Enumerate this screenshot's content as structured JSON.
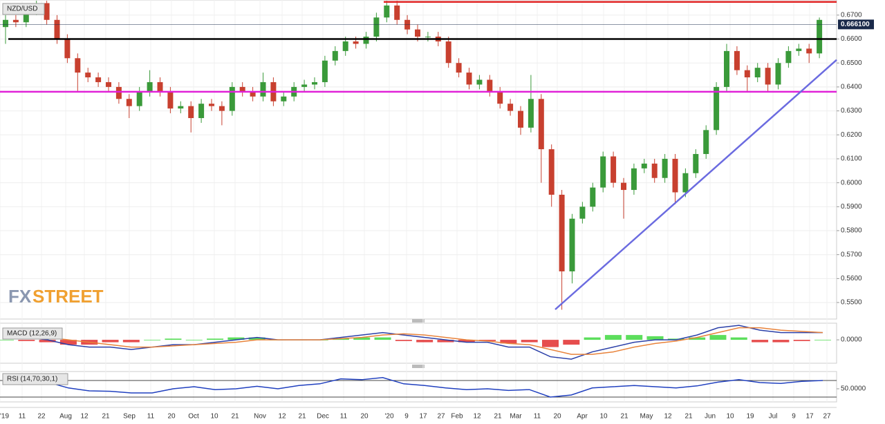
{
  "chart_data": [
    {
      "type": "candlestick",
      "title": "NZD/USD",
      "x_labels": [
        "'19",
        "11",
        "22",
        "Aug",
        "12",
        "21",
        "Sep",
        "11",
        "20",
        "Oct",
        "10",
        "21",
        "Nov",
        "12",
        "21",
        "Dec",
        "11",
        "20",
        "'20",
        "9",
        "17",
        "27",
        "Feb",
        "12",
        "21",
        "Mar",
        "11",
        "20",
        "Apr",
        "10",
        "21",
        "May",
        "12",
        "21",
        "Jun",
        "10",
        "19",
        "Jul",
        "9",
        "17",
        "27"
      ],
      "open": [
        0.665,
        0.668,
        0.667,
        0.672,
        0.675,
        0.668,
        0.66,
        0.652,
        0.646,
        0.644,
        0.642,
        0.64,
        0.635,
        0.632,
        0.638,
        0.642,
        0.638,
        0.631,
        0.632,
        0.627,
        0.633,
        0.632,
        0.63,
        0.64,
        0.638,
        0.636,
        0.642,
        0.634,
        0.636,
        0.64,
        0.641,
        0.642,
        0.651,
        0.655,
        0.659,
        0.658,
        0.661,
        0.669,
        0.674,
        0.668,
        0.664,
        0.661,
        0.661,
        0.659,
        0.65,
        0.646,
        0.641,
        0.643,
        0.638,
        0.633,
        0.63,
        0.623,
        0.635,
        0.614,
        0.595,
        0.563,
        0.585,
        0.59,
        0.598,
        0.611,
        0.6,
        0.597,
        0.606,
        0.608,
        0.602,
        0.61,
        0.596,
        0.604,
        0.612,
        0.622,
        0.64,
        0.655,
        0.647,
        0.644,
        0.648,
        0.641,
        0.65,
        0.655,
        0.656,
        0.654
      ],
      "high": [
        0.67,
        0.67,
        0.674,
        0.676,
        0.676,
        0.67,
        0.662,
        0.654,
        0.648,
        0.646,
        0.644,
        0.642,
        0.637,
        0.64,
        0.647,
        0.644,
        0.64,
        0.634,
        0.634,
        0.635,
        0.635,
        0.634,
        0.642,
        0.642,
        0.64,
        0.646,
        0.644,
        0.638,
        0.642,
        0.643,
        0.644,
        0.653,
        0.657,
        0.661,
        0.661,
        0.663,
        0.671,
        0.676,
        0.676,
        0.67,
        0.666,
        0.663,
        0.663,
        0.661,
        0.652,
        0.648,
        0.645,
        0.645,
        0.64,
        0.635,
        0.632,
        0.645,
        0.637,
        0.616,
        0.597,
        0.587,
        0.592,
        0.6,
        0.613,
        0.613,
        0.602,
        0.608,
        0.61,
        0.61,
        0.612,
        0.612,
        0.606,
        0.614,
        0.624,
        0.642,
        0.658,
        0.657,
        0.649,
        0.65,
        0.65,
        0.652,
        0.657,
        0.658,
        0.658,
        0.669
      ],
      "low": [
        0.658,
        0.665,
        0.665,
        0.67,
        0.666,
        0.658,
        0.65,
        0.638,
        0.642,
        0.64,
        0.638,
        0.633,
        0.627,
        0.63,
        0.636,
        0.636,
        0.629,
        0.629,
        0.621,
        0.625,
        0.63,
        0.624,
        0.628,
        0.636,
        0.634,
        0.634,
        0.632,
        0.632,
        0.634,
        0.638,
        0.639,
        0.64,
        0.649,
        0.653,
        0.656,
        0.656,
        0.659,
        0.667,
        0.666,
        0.662,
        0.659,
        0.659,
        0.657,
        0.648,
        0.644,
        0.639,
        0.639,
        0.636,
        0.631,
        0.628,
        0.62,
        0.621,
        0.6,
        0.59,
        0.547,
        0.558,
        0.583,
        0.588,
        0.596,
        0.598,
        0.585,
        0.595,
        0.604,
        0.6,
        0.6,
        0.591,
        0.594,
        0.602,
        0.61,
        0.62,
        0.638,
        0.645,
        0.638,
        0.642,
        0.638,
        0.639,
        0.648,
        0.653,
        0.65,
        0.652
      ],
      "close": [
        0.668,
        0.667,
        0.672,
        0.675,
        0.668,
        0.66,
        0.652,
        0.646,
        0.644,
        0.642,
        0.64,
        0.635,
        0.632,
        0.638,
        0.642,
        0.638,
        0.631,
        0.632,
        0.627,
        0.633,
        0.632,
        0.63,
        0.64,
        0.638,
        0.636,
        0.642,
        0.634,
        0.636,
        0.64,
        0.641,
        0.642,
        0.651,
        0.655,
        0.659,
        0.658,
        0.661,
        0.669,
        0.674,
        0.668,
        0.664,
        0.661,
        0.661,
        0.659,
        0.65,
        0.646,
        0.641,
        0.643,
        0.638,
        0.633,
        0.63,
        0.623,
        0.635,
        0.614,
        0.595,
        0.563,
        0.585,
        0.59,
        0.598,
        0.611,
        0.6,
        0.597,
        0.606,
        0.608,
        0.602,
        0.61,
        0.596,
        0.604,
        0.612,
        0.622,
        0.64,
        0.655,
        0.647,
        0.644,
        0.648,
        0.641,
        0.65,
        0.655,
        0.656,
        0.654,
        0.668
      ],
      "up_color": "#3a9a3a",
      "down_color": "#c8402f",
      "ylim": [
        0.5431,
        0.6763
      ],
      "yticks": [
        {
          "value": 0.55,
          "label": "0.5500"
        },
        {
          "value": 0.56,
          "label": "0.5600"
        },
        {
          "value": 0.57,
          "label": "0.5700"
        },
        {
          "value": 0.58,
          "label": "0.5800"
        },
        {
          "value": 0.59,
          "label": "0.5900"
        },
        {
          "value": 0.6,
          "label": "0.6000"
        },
        {
          "value": 0.61,
          "label": "0.6100"
        },
        {
          "value": 0.62,
          "label": "0.6200"
        },
        {
          "value": 0.63,
          "label": "0.6300"
        },
        {
          "value": 0.64,
          "label": "0.6400"
        },
        {
          "value": 0.65,
          "label": "0.6500"
        },
        {
          "value": 0.66,
          "label": "0.6600"
        },
        {
          "value": 0.67,
          "label": "0.6700"
        }
      ],
      "grid": true,
      "last_price": {
        "value": 0.6661,
        "label": "0.666100"
      },
      "levels": [
        {
          "value": 0.6755,
          "color": "#e02424"
        },
        {
          "value": 0.66,
          "color": "#000000"
        },
        {
          "value": 0.638,
          "color": "#e020d8"
        }
      ],
      "trendline": {
        "values": [
          0.5471,
          0.6513
        ],
        "color": "#6b6be0"
      },
      "logo": [
        "FX",
        "STREET"
      ]
    },
    {
      "type": "line",
      "title": "MACD (12,26,9)",
      "series": [
        {
          "color": "#2a3fa8",
          "values": [
            0.002,
            0.001,
            0.0,
            -0.002,
            -0.003,
            -0.003,
            -0.004,
            -0.003,
            -0.002,
            -0.002,
            -0.001,
            0.0,
            0.001,
            0.0,
            0.0,
            0.0,
            0.001,
            0.002,
            0.003,
            0.002,
            0.001,
            0.0,
            -0.001,
            -0.001,
            -0.003,
            -0.003,
            -0.007,
            -0.008,
            -0.005,
            -0.003,
            -0.001,
            0.0,
            0.0,
            0.002,
            0.005,
            0.006,
            0.004,
            0.003,
            0.003,
            0.003
          ]
        },
        {
          "color": "#e8823a",
          "values": [
            0.002,
            0.0015,
            0.001,
            0.0,
            -0.001,
            -0.002,
            -0.003,
            -0.003,
            -0.0025,
            -0.002,
            -0.0015,
            -0.001,
            0.0,
            0.0,
            0.0,
            0.0,
            0.0005,
            0.001,
            0.002,
            0.0025,
            0.002,
            0.001,
            0.0,
            -0.0005,
            -0.0015,
            -0.002,
            -0.004,
            -0.006,
            -0.006,
            -0.005,
            -0.003,
            -0.0015,
            -0.0005,
            0.001,
            0.003,
            0.005,
            0.005,
            0.004,
            0.0035,
            0.003
          ]
        }
      ],
      "histogram": [
        0,
        -0.0005,
        -0.001,
        -0.002,
        -0.002,
        -0.001,
        -0.001,
        0,
        0.0005,
        0,
        0.0005,
        0.001,
        0.001,
        0,
        0,
        0,
        0.0005,
        0.001,
        0.001,
        -0.0005,
        -0.001,
        -0.001,
        -0.001,
        -0.0005,
        -0.0015,
        -0.001,
        -0.003,
        -0.002,
        0.001,
        0.002,
        0.002,
        0.0015,
        0.0005,
        0.001,
        0.002,
        0.001,
        -0.001,
        -0.001,
        -0.0005,
        0
      ],
      "up_color": "#33d633",
      "down_color": "#e02020",
      "ylim": [
        -0.0097,
        0.0069
      ],
      "yticks": [
        {
          "value": 0,
          "label": "0.0000"
        }
      ]
    },
    {
      "type": "line",
      "title": "RSI (14,70,30,1)",
      "series": [
        {
          "color": "#1f3fbf",
          "values": [
            62,
            70,
            66,
            52,
            45,
            44,
            40,
            40,
            50,
            55,
            48,
            50,
            56,
            50,
            58,
            62,
            74,
            72,
            77,
            62,
            58,
            52,
            48,
            50,
            46,
            48,
            30,
            35,
            52,
            55,
            58,
            55,
            52,
            57,
            66,
            72,
            65,
            63,
            68,
            70
          ]
        }
      ],
      "levels": [
        70,
        30
      ],
      "ylim": [
        18.3,
        91.7
      ],
      "yticks": [
        {
          "value": 50,
          "label": "50.0000"
        }
      ]
    }
  ]
}
